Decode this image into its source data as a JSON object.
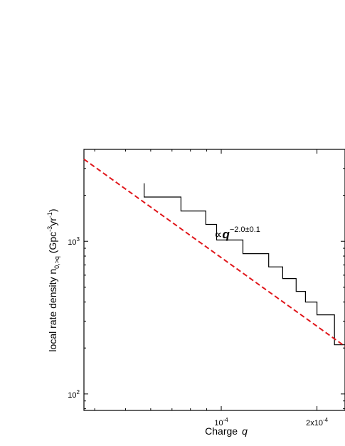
{
  "chart_data": {
    "type": "line",
    "x_scale": "log",
    "y_scale": "log",
    "xlim": [
      3.7e-05,
      0.000245
    ],
    "ylim": [
      78,
      4000
    ],
    "x_ticks": [
      {
        "value": 0.0001,
        "base": "10",
        "exp": "-4"
      },
      {
        "value": 0.0002,
        "base": "2x10",
        "exp": "-4"
      }
    ],
    "y_ticks": [
      {
        "value": 100,
        "base": "10",
        "exp": "2"
      },
      {
        "value": 1000,
        "base": "10",
        "exp": "3"
      }
    ],
    "xlabel": {
      "text": "Charge",
      "symbol": "q"
    },
    "ylabel": {
      "prefix": "local rate density n",
      "sub": "0,>q",
      "units_open": " (Gpc",
      "units_exp1": "-3",
      "units_mid": "yr",
      "units_exp2": "-1",
      "units_close": ")"
    },
    "annotation": {
      "prefix": "∝",
      "symbol": "q",
      "exponent": "−2.0±0.1"
    },
    "series": [
      {
        "style": "step",
        "color": "#000000",
        "x": [
          5.72e-05,
          5.72e-05,
          7.47e-05,
          7.47e-05,
          8.94e-05,
          8.94e-05,
          9.67e-05,
          9.67e-05,
          0.000117,
          0.000117,
          0.000141,
          0.000141,
          0.000156,
          0.000156,
          0.000172,
          0.000172,
          0.000184,
          0.000184,
          0.0002,
          0.0002,
          0.000227,
          0.000227,
          0.000245
        ],
        "y": [
          2400,
          1950,
          1950,
          1580,
          1580,
          1290,
          1290,
          1020,
          1020,
          830,
          830,
          680,
          680,
          570,
          570,
          470,
          470,
          400,
          400,
          330,
          330,
          210,
          210
        ]
      },
      {
        "style": "dashed",
        "color": "#e0161b",
        "fit": "power-law",
        "x": [
          3.7e-05,
          0.000245
        ],
        "y": [
          3450,
          205
        ]
      }
    ]
  }
}
